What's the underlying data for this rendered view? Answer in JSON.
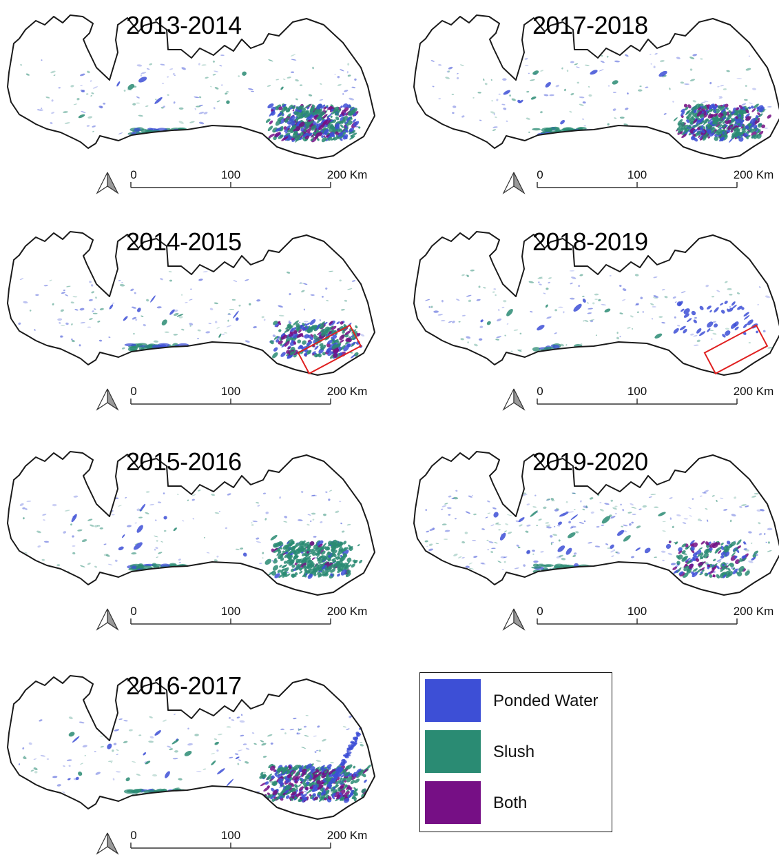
{
  "panels": [
    {
      "title": "2013-2014",
      "pattern": "se-heavy",
      "box": false
    },
    {
      "title": "2017-2018",
      "pattern": "se-heavy",
      "box": false
    },
    {
      "title": "2014-2015",
      "pattern": "se-medium",
      "box": true
    },
    {
      "title": "2018-2019",
      "pattern": "sparse",
      "box": true
    },
    {
      "title": "2015-2016",
      "pattern": "se-slush",
      "box": false
    },
    {
      "title": "2019-2020",
      "pattern": "spread",
      "box": false
    },
    {
      "title": "2016-2017",
      "pattern": "se-heavy-north",
      "box": false
    }
  ],
  "scale_bar": {
    "ticks": [
      "0",
      "100",
      "200 Km"
    ]
  },
  "legend": {
    "items": [
      {
        "label": "Ponded Water",
        "color": "#3d4fd6"
      },
      {
        "label": "Slush",
        "color": "#2a8b73"
      },
      {
        "label": "Both",
        "color": "#760f85"
      }
    ]
  },
  "colors": {
    "outline": "#1a1a1a",
    "highlight_box": "#e02020"
  }
}
